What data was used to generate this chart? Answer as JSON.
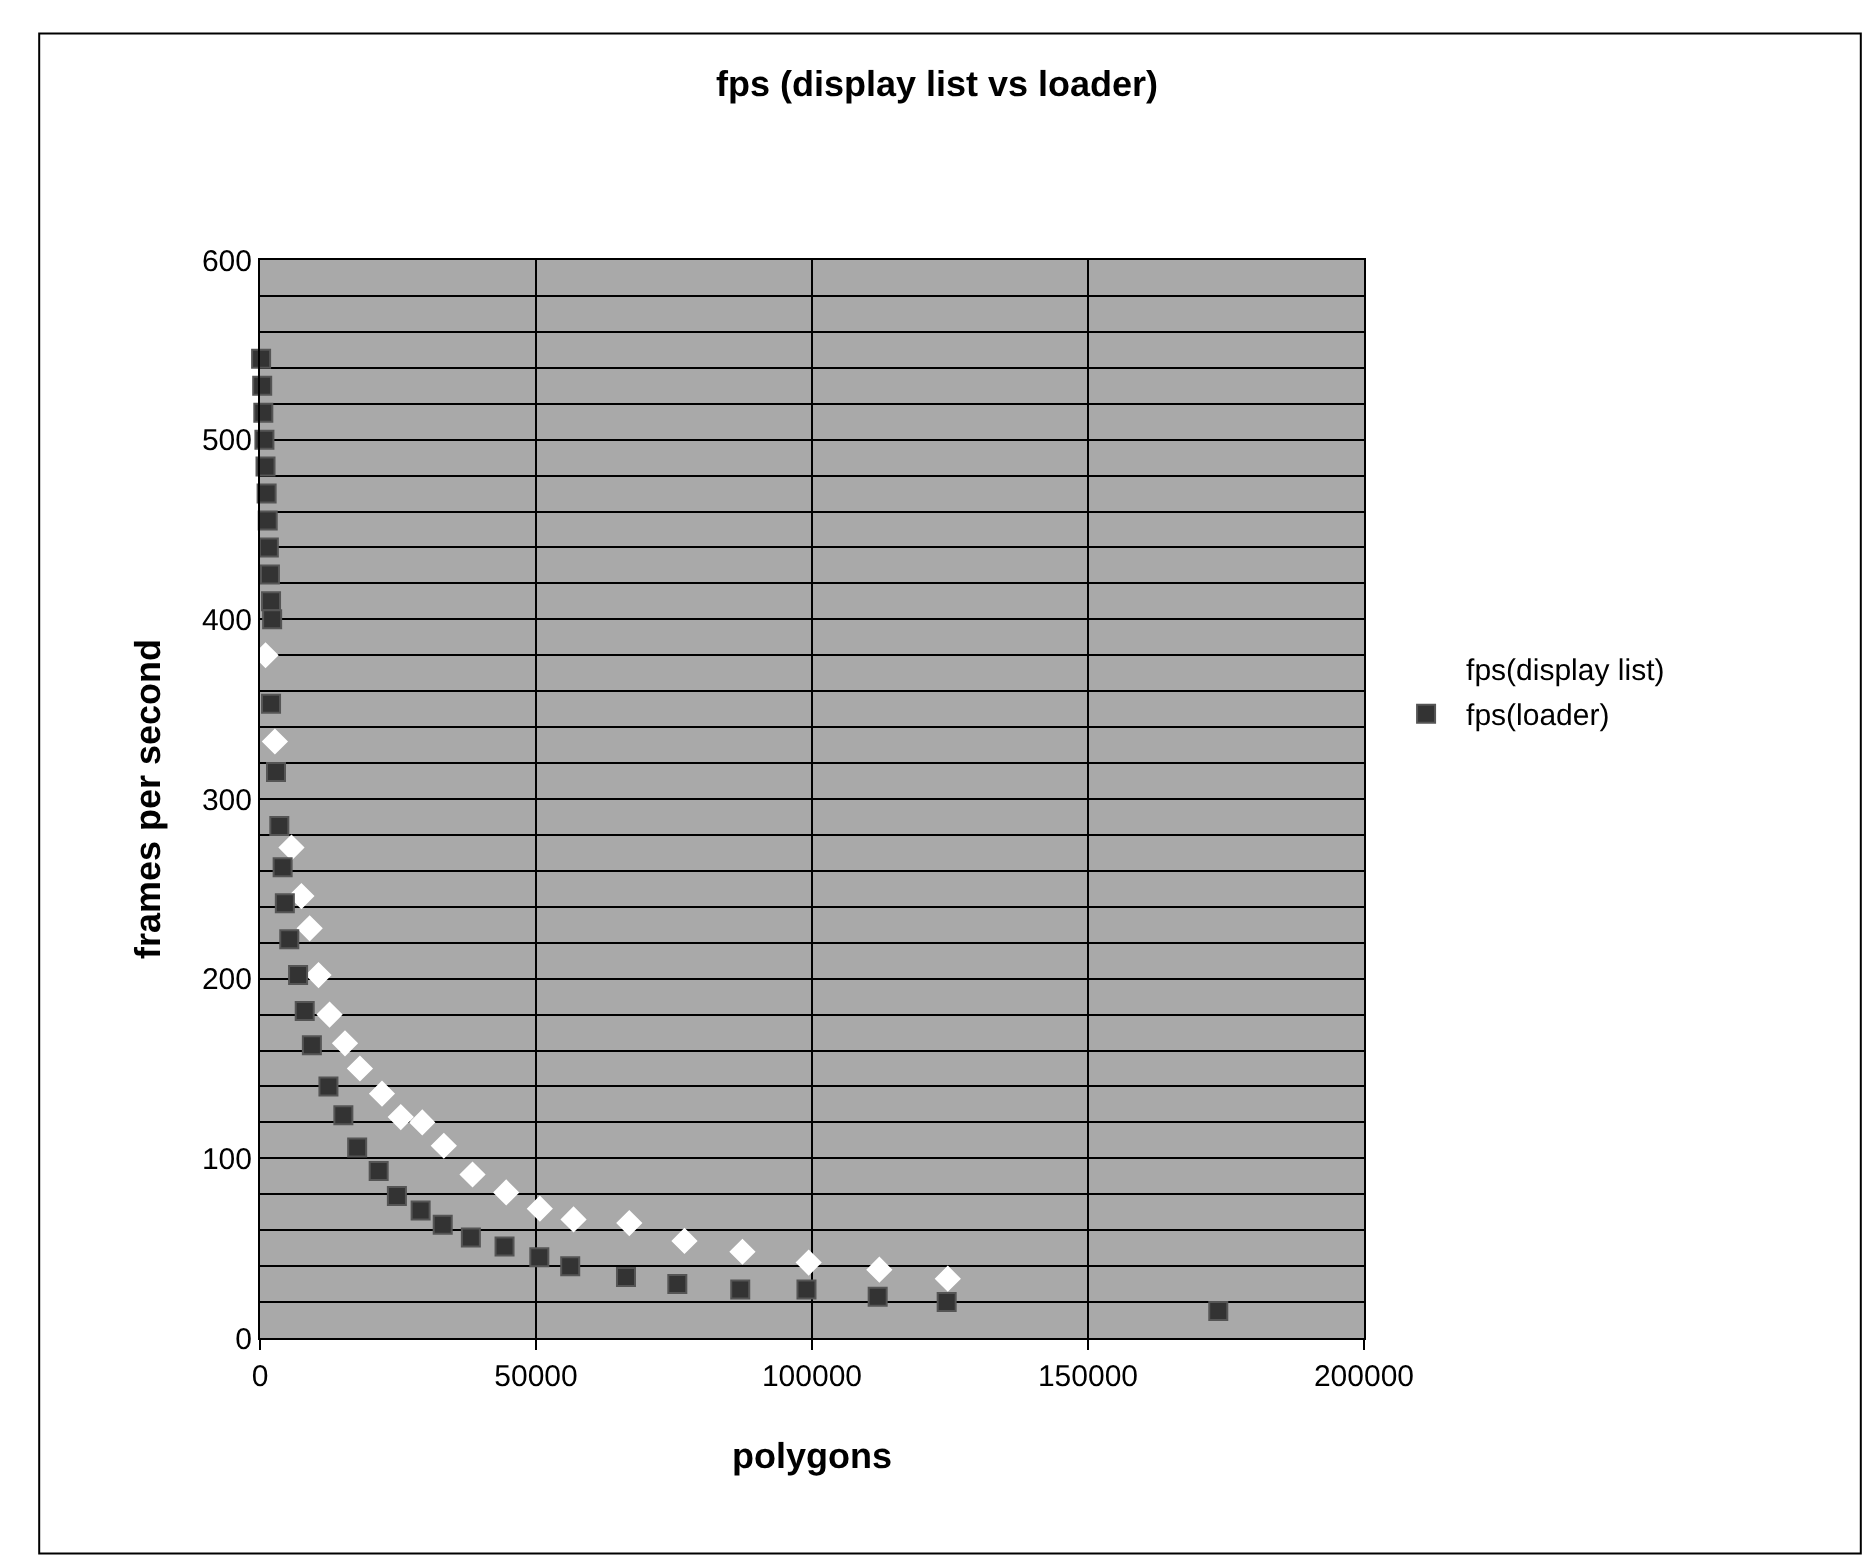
{
  "chart_data": {
    "type": "scatter",
    "title": "fps (display list vs loader)",
    "xlabel": "polygons",
    "ylabel": "frames per second",
    "xlim": [
      0,
      200000
    ],
    "xticks": [
      0,
      50000,
      100000,
      150000,
      200000
    ],
    "ylim": [
      0,
      600
    ],
    "yticks": [
      0,
      {
        "value": 20,
        "label": null
      },
      {
        "value": 40,
        "label": null
      },
      {
        "value": 60,
        "label": null
      },
      {
        "value": 80,
        "label": null
      },
      100,
      {
        "value": 120,
        "label": null
      },
      {
        "value": 140,
        "label": null
      },
      {
        "value": 160,
        "label": null
      },
      {
        "value": 180,
        "label": null
      },
      200,
      {
        "value": 220,
        "label": null
      },
      {
        "value": 240,
        "label": null
      },
      {
        "value": 260,
        "label": null
      },
      {
        "value": 280,
        "label": null
      },
      300,
      {
        "value": 320,
        "label": null
      },
      {
        "value": 340,
        "label": null
      },
      {
        "value": 360,
        "label": null
      },
      {
        "value": 380,
        "label": null
      },
      400,
      {
        "value": 420,
        "label": null
      },
      {
        "value": 440,
        "label": null
      },
      {
        "value": 460,
        "label": null
      },
      {
        "value": 480,
        "label": null
      },
      500,
      {
        "value": 520,
        "label": null
      },
      {
        "value": 540,
        "label": null
      },
      {
        "value": 560,
        "label": null
      },
      {
        "value": 580,
        "label": null
      },
      600
    ],
    "grid": true,
    "legend": "right",
    "series": [
      {
        "name": "fps(display list)",
        "color": "#ffffff",
        "marker": "diamond",
        "x": [
          1000,
          2700,
          5700,
          7500,
          9000,
          10600,
          12600,
          15400,
          18100,
          22100,
          25500,
          29400,
          33300,
          38500,
          44600,
          50700,
          56800,
          66900,
          76900,
          87400,
          99400,
          112200,
          124600
        ],
        "values": [
          380,
          332,
          273,
          246,
          228,
          202,
          180,
          164,
          150,
          136,
          123,
          120,
          107,
          91,
          81,
          72,
          66,
          64,
          54,
          48,
          42,
          38,
          33
        ]
      },
      {
        "name": "fps(loader)",
        "color": "#333333",
        "marker": "square",
        "x": [
          200,
          400,
          600,
          800,
          1000,
          1200,
          1400,
          1600,
          1800,
          2000,
          2200,
          2000,
          2900,
          3500,
          4100,
          4500,
          5300,
          6900,
          8100,
          9400,
          12400,
          15100,
          17600,
          21500,
          24800,
          29100,
          33100,
          38200,
          44300,
          50600,
          56200,
          66300,
          75600,
          87000,
          99000,
          111900,
          124400,
          173600
        ],
        "values": [
          545,
          530,
          515,
          500,
          485,
          470,
          455,
          440,
          425,
          410,
          400,
          353,
          315,
          285,
          262,
          242,
          222,
          202,
          182,
          163,
          140,
          124,
          106,
          93,
          79,
          71,
          63,
          56,
          51,
          45,
          40,
          34,
          30,
          27,
          27,
          23,
          20,
          15
        ]
      }
    ]
  }
}
